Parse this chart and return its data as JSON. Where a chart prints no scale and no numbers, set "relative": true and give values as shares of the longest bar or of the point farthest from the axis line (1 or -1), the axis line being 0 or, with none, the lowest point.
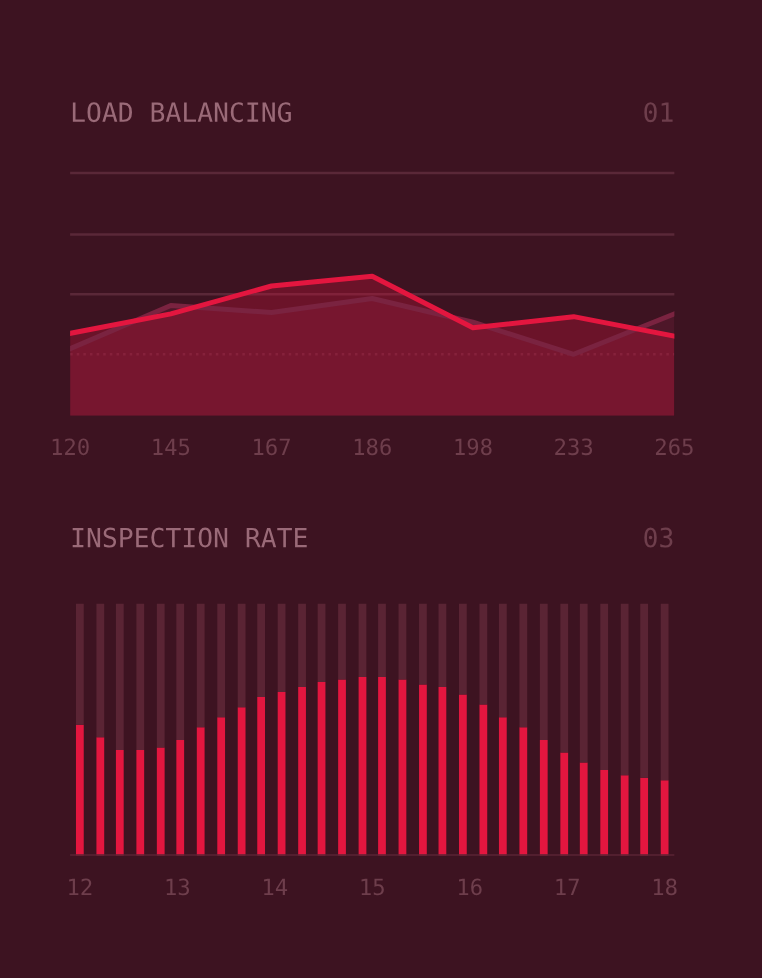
{
  "chart_data": [
    {
      "type": "area",
      "title": "LOAD BALANCING",
      "subtitle": "01",
      "relative": true,
      "ref_lines": [
        {
          "axis": "y",
          "value": 0.44,
          "color": "#5a2838",
          "line_style": "dotted"
        },
        {
          "axis": "y",
          "value": 0.87,
          "color": "#5a2838"
        },
        {
          "axis": "y",
          "value": 1.3,
          "color": "#5a2838"
        },
        {
          "axis": "y",
          "value": 1.74,
          "color": "#5a2838"
        }
      ],
      "categories": [
        "120",
        "145",
        "167",
        "186",
        "198",
        "233",
        "265"
      ],
      "series": [
        {
          "color": "#7a2340",
          "values": [
            0.48,
            0.79,
            0.74,
            0.84,
            0.67,
            0.44,
            0.73
          ]
        },
        {
          "color": "#e3163f",
          "values": [
            0.59,
            0.73,
            0.93,
            1.0,
            0.63,
            0.71,
            0.57
          ]
        }
      ]
    },
    {
      "type": "bar",
      "title": "INSPECTION RATE",
      "subtitle": "03",
      "relative": true,
      "stacked": true,
      "xlim": [
        11.9,
        18.1
      ],
      "xticks": [
        12,
        13,
        14,
        15,
        16,
        17,
        18
      ],
      "x": [
        12.0,
        12.21,
        12.41,
        12.62,
        12.83,
        13.03,
        13.24,
        13.45,
        13.66,
        13.86,
        14.07,
        14.28,
        14.48,
        14.69,
        14.9,
        15.1,
        15.31,
        15.52,
        15.72,
        15.93,
        16.14,
        16.34,
        16.55,
        16.76,
        16.97,
        17.17,
        17.38,
        17.59,
        17.79,
        18.0
      ],
      "series": [
        {
          "color": "#e3163f",
          "values": [
            0.52,
            0.47,
            0.42,
            0.42,
            0.43,
            0.46,
            0.51,
            0.55,
            0.59,
            0.63,
            0.65,
            0.67,
            0.69,
            0.7,
            0.71,
            0.71,
            0.7,
            0.68,
            0.67,
            0.64,
            0.6,
            0.55,
            0.51,
            0.46,
            0.41,
            0.37,
            0.34,
            0.32,
            0.31,
            0.3
          ]
        },
        {
          "color": "#5a2434",
          "values": [
            0.48,
            0.53,
            0.58,
            0.58,
            0.57,
            0.54,
            0.49,
            0.45,
            0.41,
            0.37,
            0.35,
            0.33,
            0.31,
            0.3,
            0.29,
            0.29,
            0.3,
            0.32,
            0.33,
            0.36,
            0.4,
            0.45,
            0.49,
            0.54,
            0.59,
            0.63,
            0.66,
            0.68,
            0.69,
            0.7
          ]
        }
      ]
    }
  ]
}
